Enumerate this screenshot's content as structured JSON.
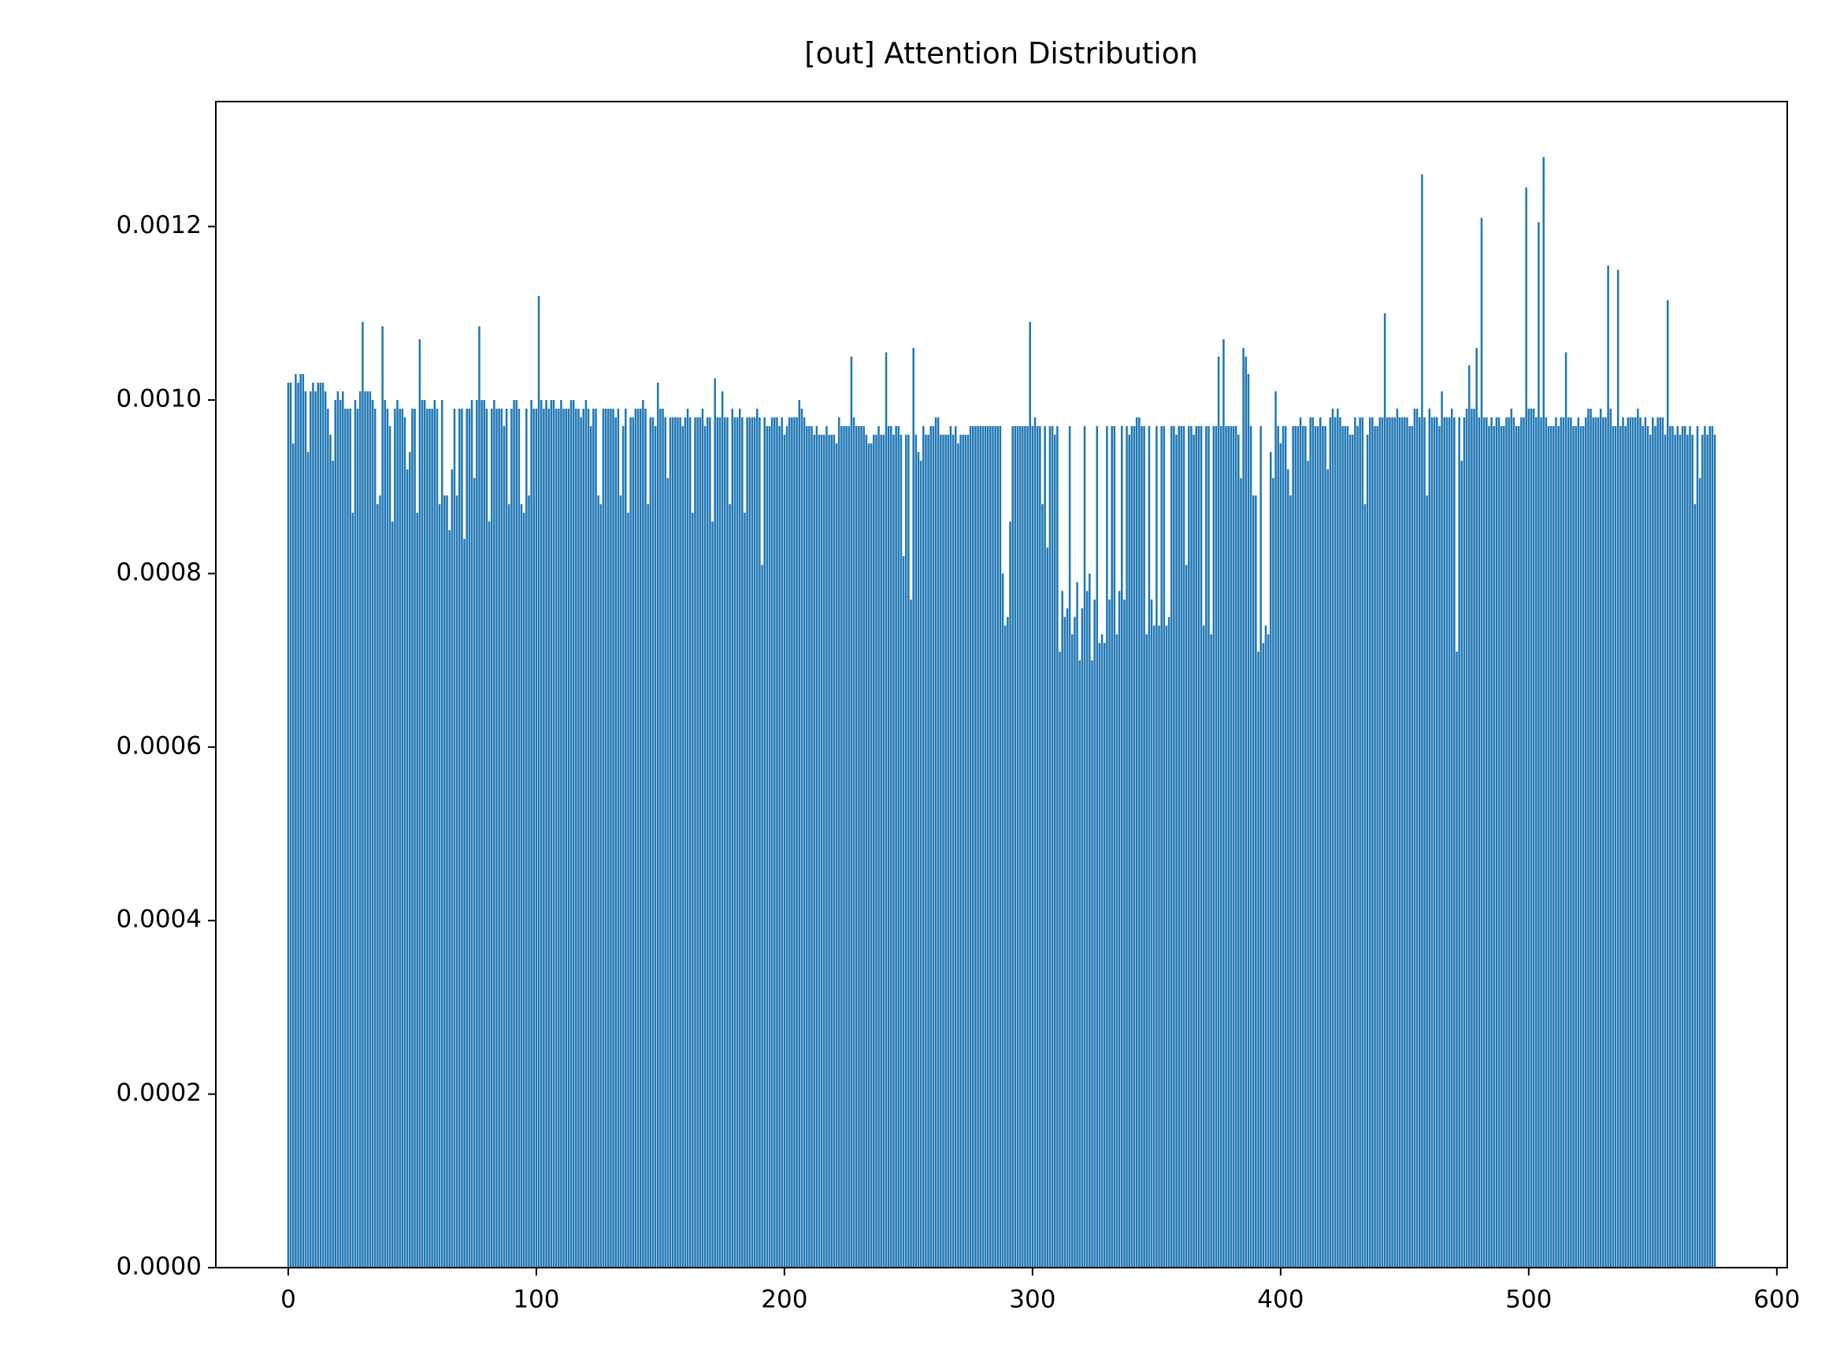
{
  "chart_data": {
    "type": "bar",
    "title": "[out] Attention Distribution",
    "color": "#1f77b4",
    "grid": false,
    "xlim": [
      -29.19,
      604.19
    ],
    "xticks": [
      0,
      100,
      200,
      300,
      400,
      500,
      600
    ],
    "ylim": [
      0,
      0.001344
    ],
    "yticks": [
      {
        "value": 0,
        "label": "0.0000"
      },
      0.0002,
      0.0004,
      0.0006,
      0.0008,
      {
        "value": 0.001,
        "label": "0.0010"
      },
      0.0012
    ],
    "x": [
      0,
      1,
      2,
      3,
      4,
      5,
      6,
      7,
      8,
      9,
      10,
      11,
      12,
      13,
      14,
      15,
      16,
      17,
      18,
      19,
      20,
      21,
      22,
      23,
      24,
      25,
      26,
      27,
      28,
      29,
      30,
      31,
      32,
      33,
      34,
      35,
      36,
      37,
      38,
      39,
      40,
      41,
      42,
      43,
      44,
      45,
      46,
      47,
      48,
      49,
      50,
      51,
      52,
      53,
      54,
      55,
      56,
      57,
      58,
      59,
      60,
      61,
      62,
      63,
      64,
      65,
      66,
      67,
      68,
      69,
      70,
      71,
      72,
      73,
      74,
      75,
      76,
      77,
      78,
      79,
      80,
      81,
      82,
      83,
      84,
      85,
      86,
      87,
      88,
      89,
      90,
      91,
      92,
      93,
      94,
      95,
      96,
      97,
      98,
      99,
      100,
      101,
      102,
      103,
      104,
      105,
      106,
      107,
      108,
      109,
      110,
      111,
      112,
      113,
      114,
      115,
      116,
      117,
      118,
      119,
      120,
      121,
      122,
      123,
      124,
      125,
      126,
      127,
      128,
      129,
      130,
      131,
      132,
      133,
      134,
      135,
      136,
      137,
      138,
      139,
      140,
      141,
      142,
      143,
      144,
      145,
      146,
      147,
      148,
      149,
      150,
      151,
      152,
      153,
      154,
      155,
      156,
      157,
      158,
      159,
      160,
      161,
      162,
      163,
      164,
      165,
      166,
      167,
      168,
      169,
      170,
      171,
      172,
      173,
      174,
      175,
      176,
      177,
      178,
      179,
      180,
      181,
      182,
      183,
      184,
      185,
      186,
      187,
      188,
      189,
      190,
      191,
      192,
      193,
      194,
      195,
      196,
      197,
      198,
      199,
      200,
      201,
      202,
      203,
      204,
      205,
      206,
      207,
      208,
      209,
      210,
      211,
      212,
      213,
      214,
      215,
      216,
      217,
      218,
      219,
      220,
      221,
      222,
      223,
      224,
      225,
      226,
      227,
      228,
      229,
      230,
      231,
      232,
      233,
      234,
      235,
      236,
      237,
      238,
      239,
      240,
      241,
      242,
      243,
      244,
      245,
      246,
      247,
      248,
      249,
      250,
      251,
      252,
      253,
      254,
      255,
      256,
      257,
      258,
      259,
      260,
      261,
      262,
      263,
      264,
      265,
      266,
      267,
      268,
      269,
      270,
      271,
      272,
      273,
      274,
      275,
      276,
      277,
      278,
      279,
      280,
      281,
      282,
      283,
      284,
      285,
      286,
      287,
      288,
      289,
      290,
      291,
      292,
      293,
      294,
      295,
      296,
      297,
      298,
      299,
      300,
      301,
      302,
      303,
      304,
      305,
      306,
      307,
      308,
      309,
      310,
      311,
      312,
      313,
      314,
      315,
      316,
      317,
      318,
      319,
      320,
      321,
      322,
      323,
      324,
      325,
      326,
      327,
      328,
      329,
      330,
      331,
      332,
      333,
      334,
      335,
      336,
      337,
      338,
      339,
      340,
      341,
      342,
      343,
      344,
      345,
      346,
      347,
      348,
      349,
      350,
      351,
      352,
      353,
      354,
      355,
      356,
      357,
      358,
      359,
      360,
      361,
      362,
      363,
      364,
      365,
      366,
      367,
      368,
      369,
      370,
      371,
      372,
      373,
      374,
      375,
      376,
      377,
      378,
      379,
      380,
      381,
      382,
      383,
      384,
      385,
      386,
      387,
      388,
      389,
      390,
      391,
      392,
      393,
      394,
      395,
      396,
      397,
      398,
      399,
      400,
      401,
      402,
      403,
      404,
      405,
      406,
      407,
      408,
      409,
      410,
      411,
      412,
      413,
      414,
      415,
      416,
      417,
      418,
      419,
      420,
      421,
      422,
      423,
      424,
      425,
      426,
      427,
      428,
      429,
      430,
      431,
      432,
      433,
      434,
      435,
      436,
      437,
      438,
      439,
      440,
      441,
      442,
      443,
      444,
      445,
      446,
      447,
      448,
      449,
      450,
      451,
      452,
      453,
      454,
      455,
      456,
      457,
      458,
      459,
      460,
      461,
      462,
      463,
      464,
      465,
      466,
      467,
      468,
      469,
      470,
      471,
      472,
      473,
      474,
      475,
      476,
      477,
      478,
      479,
      480,
      481,
      482,
      483,
      484,
      485,
      486,
      487,
      488,
      489,
      490,
      491,
      492,
      493,
      494,
      495,
      496,
      497,
      498,
      499,
      500,
      501,
      502,
      503,
      504,
      505,
      506,
      507,
      508,
      509,
      510,
      511,
      512,
      513,
      514,
      515,
      516,
      517,
      518,
      519,
      520,
      521,
      522,
      523,
      524,
      525,
      526,
      527,
      528,
      529,
      530,
      531,
      532,
      533,
      534,
      535,
      536,
      537,
      538,
      539,
      540,
      541,
      542,
      543,
      544,
      545,
      546,
      547,
      548,
      549,
      550,
      551,
      552,
      553,
      554,
      555,
      556,
      557,
      558,
      559,
      560,
      561,
      562,
      563,
      564,
      565,
      566,
      567,
      568,
      569,
      570,
      571,
      572,
      573,
      574,
      575
    ],
    "values": [
      0.00102,
      0.00102,
      0.00095,
      0.00103,
      0.00102,
      0.00103,
      0.00103,
      0.00101,
      0.00094,
      0.00101,
      0.00102,
      0.00101,
      0.00102,
      0.00102,
      0.00102,
      0.00101,
      0.00099,
      0.00096,
      0.00093,
      0.001,
      0.00101,
      0.001,
      0.00101,
      0.00099,
      0.00099,
      0.00099,
      0.00087,
      0.001,
      0.00099,
      0.00101,
      0.00109,
      0.00101,
      0.00101,
      0.00101,
      0.001,
      0.00099,
      0.00088,
      0.00089,
      0.001085,
      0.001,
      0.00099,
      0.00097,
      0.00086,
      0.00099,
      0.001,
      0.00099,
      0.00099,
      0.00098,
      0.00092,
      0.00094,
      0.00099,
      0.00099,
      0.00087,
      0.00107,
      0.001,
      0.001,
      0.00099,
      0.00099,
      0.00099,
      0.001,
      0.00099,
      0.00088,
      0.001,
      0.00089,
      0.00089,
      0.00085,
      0.00092,
      0.00099,
      0.00089,
      0.00099,
      0.00099,
      0.00084,
      0.00099,
      0.00099,
      0.001,
      0.00091,
      0.001,
      0.001085,
      0.001,
      0.001,
      0.00099,
      0.00086,
      0.00099,
      0.001,
      0.00099,
      0.00099,
      0.00099,
      0.00097,
      0.00099,
      0.00088,
      0.00099,
      0.001,
      0.001,
      0.00099,
      0.00088,
      0.00087,
      0.00099,
      0.00089,
      0.001,
      0.00099,
      0.00099,
      0.00112,
      0.001,
      0.00099,
      0.001,
      0.00099,
      0.001,
      0.001,
      0.00099,
      0.00099,
      0.001,
      0.00099,
      0.00099,
      0.00099,
      0.001,
      0.001,
      0.00099,
      0.00099,
      0.00098,
      0.00099,
      0.001,
      0.00099,
      0.00097,
      0.00099,
      0.00099,
      0.00089,
      0.00088,
      0.00099,
      0.00099,
      0.00099,
      0.00099,
      0.00099,
      0.00098,
      0.00099,
      0.00089,
      0.00097,
      0.00099,
      0.00087,
      0.00098,
      0.00098,
      0.00099,
      0.00099,
      0.00099,
      0.001,
      0.00099,
      0.00088,
      0.00098,
      0.00098,
      0.00097,
      0.00102,
      0.00099,
      0.00099,
      0.00098,
      0.00091,
      0.00098,
      0.00098,
      0.00098,
      0.00098,
      0.00098,
      0.00097,
      0.00098,
      0.00099,
      0.00098,
      0.00087,
      0.00098,
      0.00098,
      0.00098,
      0.00099,
      0.00097,
      0.00098,
      0.00098,
      0.00086,
      0.001025,
      0.00098,
      0.00098,
      0.00101,
      0.00098,
      0.00098,
      0.00088,
      0.00099,
      0.00098,
      0.00098,
      0.00099,
      0.00098,
      0.00087,
      0.00098,
      0.00098,
      0.00098,
      0.00098,
      0.00099,
      0.00098,
      0.00081,
      0.00098,
      0.00097,
      0.00097,
      0.00098,
      0.00098,
      0.00098,
      0.00097,
      0.00098,
      0.00096,
      0.00097,
      0.00098,
      0.00098,
      0.00098,
      0.00098,
      0.001,
      0.00099,
      0.00098,
      0.00097,
      0.00097,
      0.00097,
      0.00096,
      0.00097,
      0.00096,
      0.00096,
      0.00096,
      0.00097,
      0.00096,
      0.00096,
      0.00096,
      0.00095,
      0.00098,
      0.00097,
      0.00097,
      0.00097,
      0.00097,
      0.00105,
      0.00098,
      0.00097,
      0.00097,
      0.00097,
      0.00097,
      0.00096,
      0.00095,
      0.00095,
      0.00096,
      0.00096,
      0.00097,
      0.00096,
      0.00096,
      0.001055,
      0.00097,
      0.00097,
      0.00096,
      0.00097,
      0.00097,
      0.00096,
      0.00082,
      0.00096,
      0.00096,
      0.00077,
      0.00106,
      0.00096,
      0.00094,
      0.00093,
      0.00097,
      0.00096,
      0.00096,
      0.00097,
      0.00097,
      0.00098,
      0.00098,
      0.00096,
      0.00096,
      0.00096,
      0.00096,
      0.00097,
      0.00096,
      0.00097,
      0.00095,
      0.00096,
      0.00096,
      0.00096,
      0.00096,
      0.00097,
      0.00097,
      0.00097,
      0.00097,
      0.00097,
      0.00097,
      0.00097,
      0.00097,
      0.00097,
      0.00097,
      0.00097,
      0.00097,
      0.00097,
      0.0008,
      0.00074,
      0.00075,
      0.00086,
      0.00097,
      0.00097,
      0.00097,
      0.00097,
      0.00097,
      0.00097,
      0.00097,
      0.00109,
      0.00097,
      0.00098,
      0.00097,
      0.00097,
      0.00088,
      0.00097,
      0.00083,
      0.00097,
      0.00097,
      0.00096,
      0.00097,
      0.00071,
      0.00078,
      0.00075,
      0.00076,
      0.00097,
      0.00073,
      0.00075,
      0.00079,
      0.0007,
      0.00076,
      0.00097,
      0.00078,
      0.0008,
      0.0007,
      0.00077,
      0.00097,
      0.00072,
      0.00073,
      0.00072,
      0.00097,
      0.00077,
      0.00097,
      0.00097,
      0.00073,
      0.00078,
      0.00097,
      0.00077,
      0.00097,
      0.00096,
      0.00097,
      0.00097,
      0.00098,
      0.00098,
      0.00097,
      0.00097,
      0.00073,
      0.00097,
      0.00077,
      0.00074,
      0.00097,
      0.00074,
      0.00097,
      0.00097,
      0.00074,
      0.00075,
      0.00097,
      0.00097,
      0.00096,
      0.00097,
      0.00097,
      0.00097,
      0.00081,
      0.00097,
      0.00097,
      0.00096,
      0.00097,
      0.00097,
      0.00097,
      0.00074,
      0.00097,
      0.00097,
      0.00073,
      0.00097,
      0.00097,
      0.00105,
      0.00097,
      0.00107,
      0.00097,
      0.00097,
      0.00097,
      0.00097,
      0.00097,
      0.00096,
      0.00091,
      0.00106,
      0.00105,
      0.00103,
      0.00097,
      0.00089,
      0.00089,
      0.00071,
      0.00097,
      0.00072,
      0.00074,
      0.00073,
      0.00094,
      0.00091,
      0.00101,
      0.00097,
      0.00095,
      0.00097,
      0.00097,
      0.00092,
      0.00089,
      0.00097,
      0.00097,
      0.00097,
      0.00098,
      0.00097,
      0.00097,
      0.00093,
      0.00098,
      0.00098,
      0.00097,
      0.00097,
      0.00098,
      0.00097,
      0.00097,
      0.00092,
      0.00098,
      0.00099,
      0.00098,
      0.00099,
      0.00098,
      0.00097,
      0.00097,
      0.00097,
      0.00096,
      0.00096,
      0.00098,
      0.00097,
      0.00098,
      0.00098,
      0.00088,
      0.00096,
      0.00098,
      0.00098,
      0.00097,
      0.00097,
      0.00098,
      0.00098,
      0.0011,
      0.00098,
      0.00098,
      0.00098,
      0.00098,
      0.00099,
      0.00098,
      0.00098,
      0.00098,
      0.00098,
      0.00097,
      0.00097,
      0.00099,
      0.00099,
      0.00098,
      0.00126,
      0.00098,
      0.00089,
      0.00099,
      0.00098,
      0.00098,
      0.00098,
      0.00097,
      0.00101,
      0.00098,
      0.00098,
      0.00098,
      0.00099,
      0.00098,
      0.00071,
      0.00098,
      0.00093,
      0.00098,
      0.00099,
      0.00104,
      0.00099,
      0.00099,
      0.00106,
      0.00098,
      0.00121,
      0.00098,
      0.00098,
      0.00097,
      0.00098,
      0.00097,
      0.00098,
      0.00098,
      0.00097,
      0.00097,
      0.00098,
      0.00098,
      0.00099,
      0.00098,
      0.00097,
      0.00097,
      0.00098,
      0.00098,
      0.001245,
      0.00099,
      0.00099,
      0.00099,
      0.00098,
      0.001205,
      0.00098,
      0.00128,
      0.00098,
      0.00097,
      0.00097,
      0.00097,
      0.00098,
      0.00097,
      0.00098,
      0.00098,
      0.001055,
      0.00098,
      0.00098,
      0.00097,
      0.00097,
      0.00098,
      0.00097,
      0.00097,
      0.00098,
      0.00099,
      0.00099,
      0.00098,
      0.00098,
      0.00098,
      0.00099,
      0.00098,
      0.00098,
      0.001155,
      0.00099,
      0.00097,
      0.00097,
      0.00115,
      0.00097,
      0.00098,
      0.00097,
      0.00098,
      0.00098,
      0.00098,
      0.00098,
      0.00099,
      0.00098,
      0.00097,
      0.00098,
      0.00097,
      0.00096,
      0.00098,
      0.00097,
      0.00098,
      0.00098,
      0.00098,
      0.00096,
      0.001115,
      0.00097,
      0.00097,
      0.00096,
      0.00097,
      0.00096,
      0.00097,
      0.00097,
      0.00096,
      0.00097,
      0.00096,
      0.00088,
      0.00097,
      0.00091,
      0.00096,
      0.00097,
      0.00096,
      0.00097,
      0.00097,
      0.00096
    ]
  }
}
